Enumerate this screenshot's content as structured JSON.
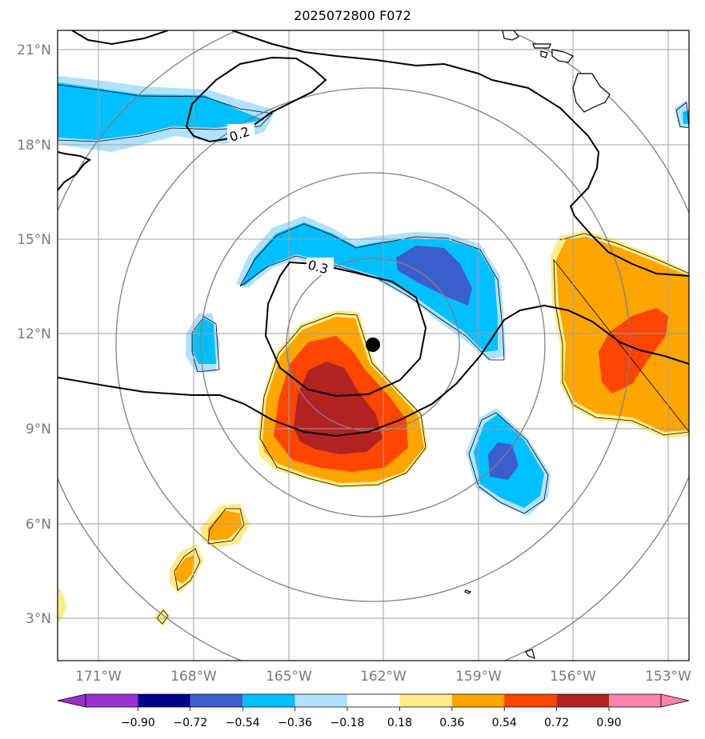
{
  "title": "2025072800 F072",
  "map": {
    "lon_range": [
      -172,
      -152
    ],
    "lat_range": [
      1.8,
      21.6
    ],
    "lat_ticks": [
      "3°N",
      "6°N",
      "9°N",
      "12°N",
      "15°N",
      "18°N",
      "21°N"
    ],
    "lon_ticks": [
      "171°W",
      "168°W",
      "165°W",
      "162°W",
      "159°W",
      "156°W",
      "153°W"
    ],
    "center_marker": {
      "lon": -162.3,
      "lat": 11.6
    },
    "range_rings": "concentric circles around center",
    "contour_labels": [
      "0.2",
      "0.3"
    ],
    "grid": true
  },
  "colorbar": {
    "ticks": [
      "−0.90",
      "−0.72",
      "−0.54",
      "−0.36",
      "−0.18",
      "0.18",
      "0.36",
      "0.54",
      "0.72",
      "0.90"
    ],
    "colors": [
      "#9932CC",
      "#00008B",
      "#3A5FCD",
      "#00BFFF",
      "#B0E2FF",
      "#FFFFFF",
      "#FFEC8B",
      "#FFA500",
      "#FF4500",
      "#B22222",
      "#FF82AB"
    ]
  }
}
